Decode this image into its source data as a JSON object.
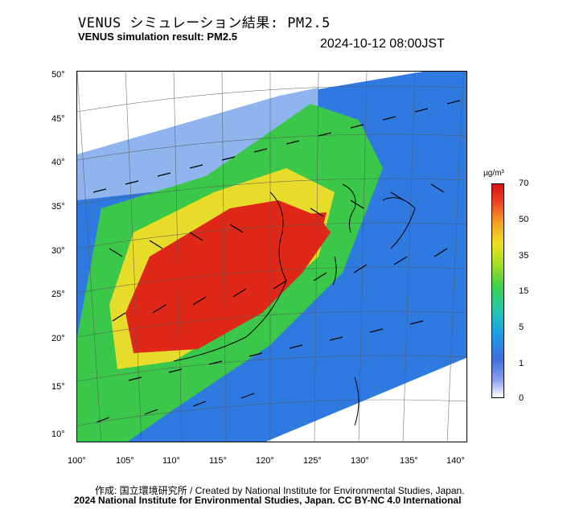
{
  "title_jp": "VENUS シミュレーション結果: PM2.5",
  "title_en": "VENUS simulation result: PM2.5",
  "timestamp": "2024-10-12 08:00JST",
  "lat_labels": [
    "50°",
    "45°",
    "40°",
    "35°",
    "30°",
    "25°",
    "20°",
    "15°",
    "10°"
  ],
  "lon_labels": [
    "100°",
    "105°",
    "110°",
    "115°",
    "120°",
    "125°",
    "130°",
    "135°",
    "140°"
  ],
  "colorbar": {
    "unit": "µg/m³",
    "ticks": [
      "70",
      "50",
      "35",
      "15",
      "5",
      "1",
      "0"
    ],
    "colors": {
      "low": "#ffffff",
      "blue": "#3b6fe0",
      "green": "#3bd24a",
      "yellow": "#f0e020",
      "high": "#d81010"
    }
  },
  "credit": "作成: 国立環境研究所 / Created by National Institute for Environmental Studies, Japan.",
  "license": "2024 National Institute for Environmental Studies, Japan. CC BY-NC 4.0 International"
}
